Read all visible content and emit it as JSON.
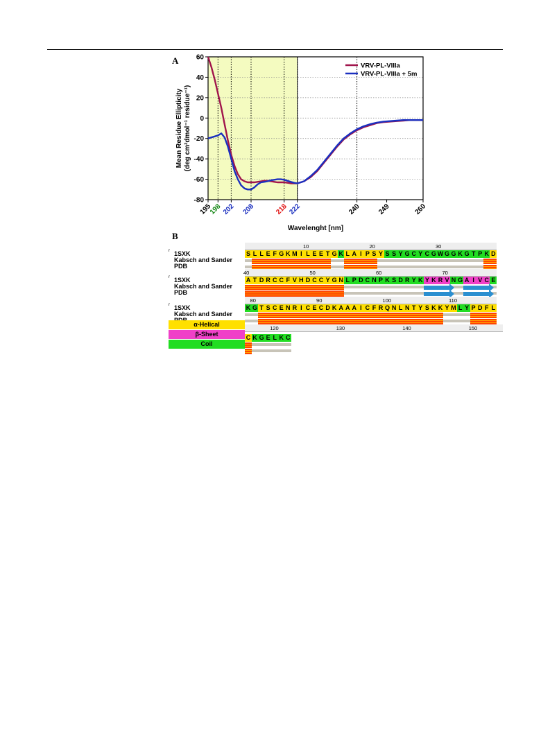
{
  "panels": {
    "a_label": "A",
    "b_label": "B"
  },
  "chart_data": {
    "type": "line",
    "xlabel": "Wavelenght [nm]",
    "ylabel_line1": "Mean Residue Ellipticity",
    "ylabel_line2": "(deg cm²dmol⁻¹ residue⁻¹)",
    "xlim": [
      195,
      260
    ],
    "ylim": [
      -80,
      60
    ],
    "yticks": [
      60,
      40,
      20,
      0,
      -20,
      -40,
      -60,
      -80
    ],
    "xticks": [
      {
        "value": 195,
        "label": "195",
        "color": "#000000"
      },
      {
        "value": 198,
        "label": "198",
        "color": "#1a8a1a"
      },
      {
        "value": 202,
        "label": "202",
        "color": "#1a2fbf"
      },
      {
        "value": 208,
        "label": "208",
        "color": "#1a2fbf"
      },
      {
        "value": 218,
        "label": "218",
        "color": "#e01010"
      },
      {
        "value": 222,
        "label": "222",
        "color": "#1a2fbf"
      },
      {
        "value": 240,
        "label": "240",
        "color": "#000000"
      },
      {
        "value": 249,
        "label": "249",
        "color": "#000000"
      },
      {
        "value": 260,
        "label": "260",
        "color": "#000000"
      }
    ],
    "vlines": [
      198,
      202,
      208,
      218,
      222,
      240
    ],
    "highlight_range": [
      195,
      222
    ],
    "highlight_color": "#f4fbc0",
    "grid": "horizontal dotted",
    "legend_position": "top-right",
    "series": [
      {
        "name": "VRV-PL-VIIIa",
        "color": "#a0154c",
        "x": [
          195,
          196,
          197,
          198,
          199,
          200,
          201,
          202,
          203,
          204,
          205,
          206,
          207,
          208,
          209,
          210,
          211,
          212,
          213,
          214,
          215,
          216,
          217,
          218,
          219,
          220,
          221,
          222,
          224,
          226,
          228,
          230,
          232,
          234,
          236,
          238,
          240,
          242,
          244,
          246,
          248,
          250,
          252,
          254,
          256,
          258,
          260
        ],
        "y": [
          60,
          50,
          38,
          24,
          10,
          -6,
          -22,
          -36,
          -47,
          -55,
          -60,
          -62,
          -63,
          -63,
          -63,
          -62.5,
          -62,
          -61.5,
          -61.5,
          -62,
          -62.5,
          -63,
          -63,
          -63,
          -63.5,
          -64,
          -64,
          -64,
          -62,
          -58,
          -52,
          -44,
          -36,
          -28,
          -21,
          -16,
          -12,
          -9,
          -7,
          -5,
          -4,
          -3.5,
          -3,
          -2.5,
          -2,
          -2,
          -2
        ]
      },
      {
        "name": "VRV-PL-VIIIa + 5m",
        "color": "#1a2fbf",
        "x": [
          195,
          196,
          197,
          198,
          199,
          200,
          201,
          202,
          203,
          204,
          205,
          206,
          207,
          208,
          209,
          210,
          211,
          212,
          213,
          214,
          215,
          216,
          217,
          218,
          219,
          220,
          221,
          222,
          224,
          226,
          228,
          230,
          232,
          234,
          236,
          238,
          240,
          242,
          244,
          246,
          248,
          250,
          252,
          254,
          256,
          258,
          260
        ],
        "y": [
          -20,
          -19,
          -18,
          -17,
          -15,
          -19,
          -28,
          -40,
          -52,
          -60,
          -66,
          -69,
          -70,
          -70,
          -68,
          -65,
          -63,
          -62.5,
          -62,
          -61,
          -60.5,
          -60,
          -60,
          -60.5,
          -61.5,
          -62.5,
          -63.5,
          -64,
          -62,
          -57,
          -51,
          -43,
          -35,
          -27,
          -20,
          -15,
          -11,
          -8,
          -6,
          -4.5,
          -3.5,
          -3,
          -2.5,
          -2,
          -2,
          -2,
          -2
        ]
      }
    ]
  },
  "sequence": {
    "mark": "r",
    "rows": [
      {
        "id": "1SXK",
        "label2": "Kabsch and Sander",
        "label3": "PDB",
        "ruler": [
          "10",
          "20",
          "30"
        ],
        "ruler_offsets": [
          9,
          19,
          29
        ],
        "seq": "SLLEFGKMILEETGKLAIPSYSSYGCYCGWGGKGTPKD",
        "classes": "HHHHHHHHHHHHHHCHHHHHHCCCCCCCCCCCCCCCCH",
        "red": [
          [
            1,
            12
          ],
          [
            15,
            19
          ],
          [
            36,
            37
          ]
        ],
        "arrows": []
      },
      {
        "id": "1SXK",
        "label2": "Kabsch and Sander",
        "label3": "PDB",
        "ruler": [
          "40",
          "50",
          "60",
          "70"
        ],
        "ruler_offsets": [
          0,
          10,
          20,
          30
        ],
        "seq": "ATDRCCFVHDCCYGNLPDCNPKSDRYKYKRVNGAIVCE",
        "classes": "HHHHHHHHHHHHHHHCCCCCCCCCCCCEEEECCEEEEC",
        "red": [
          [
            0,
            14
          ]
        ],
        "arrows": [
          [
            27,
            31
          ],
          [
            33,
            37
          ]
        ]
      },
      {
        "id": "1SXK",
        "label2": "Kabsch and Sander",
        "label3": "PDB",
        "ruler": [
          "80",
          "90",
          "100",
          "110"
        ],
        "ruler_offsets": [
          1,
          11,
          21,
          31
        ],
        "seq": "KGTSCENRICECDKAAAICFRQNLNTYSKKYMLYPDFL",
        "classes": "CCHHHHHHHHHHHHHHHHHHHHHHHHHHHHHHCCHHHH",
        "red": [
          [
            2,
            29
          ],
          [
            34,
            37
          ]
        ],
        "arrows": []
      },
      {
        "id": "",
        "label2": "",
        "label3": "",
        "ruler": [
          "120",
          "130",
          "140",
          "150"
        ],
        "ruler_offsets": [
          4,
          14,
          24,
          34
        ],
        "seq": "CKGELKC",
        "classes": "HCCCCCC",
        "red": [
          [
            0,
            0
          ]
        ],
        "arrows": []
      }
    ],
    "legend": [
      {
        "label": "α-Helical",
        "color": "#ffe000"
      },
      {
        "label": "β-Sheet",
        "color": "#f040c8"
      },
      {
        "label": "Coil",
        "color": "#22dd22"
      }
    ]
  }
}
